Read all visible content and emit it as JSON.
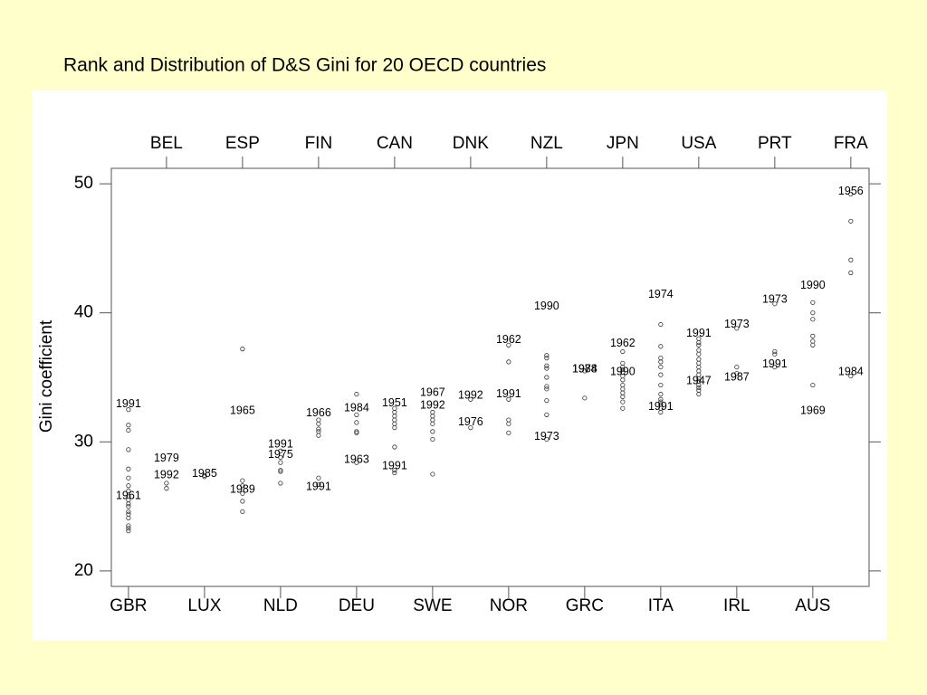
{
  "chart_data": {
    "type": "strip",
    "title": "Rank and Distribution of D&S Gini for 20 OECD countries",
    "y_label": "Gini coefficient",
    "ylim": [
      18.8,
      51.2
    ],
    "yticks": [
      20,
      30,
      40,
      50
    ],
    "point_color": "#333333",
    "series": [
      {
        "name": "GBR",
        "values": [
          32.5,
          31.3,
          30.9,
          29.4,
          27.9,
          27.2,
          26.6,
          26.2,
          25.8,
          25.5,
          25.2,
          25.0,
          24.6,
          24.4,
          24.1,
          23.5,
          23.3,
          23.1
        ],
        "year_labels": [
          {
            "label": "1991",
            "value": 32.9
          },
          {
            "label": "1961",
            "value": 25.8
          }
        ]
      },
      {
        "name": "BEL",
        "values": [
          26.8,
          26.4
        ],
        "year_labels": [
          {
            "label": "1979",
            "value": 28.7
          },
          {
            "label": "1992",
            "value": 27.4
          }
        ]
      },
      {
        "name": "LUX",
        "values": [
          27.4,
          27.3
        ],
        "year_labels": [
          {
            "label": "1985",
            "value": 27.5
          }
        ]
      },
      {
        "name": "ESP",
        "values": [
          37.2,
          27.0,
          26.6,
          26.0,
          25.4,
          24.6
        ],
        "year_labels": [
          {
            "label": "1965",
            "value": 32.4
          },
          {
            "label": "1989",
            "value": 26.3
          }
        ]
      },
      {
        "name": "NLD",
        "values": [
          29.3,
          28.8,
          28.4,
          27.8,
          27.7,
          26.8
        ],
        "year_labels": [
          {
            "label": "1991",
            "value": 29.8
          },
          {
            "label": "1975",
            "value": 29.0
          }
        ]
      },
      {
        "name": "FIN",
        "values": [
          31.7,
          31.4,
          31.0,
          30.8,
          30.5,
          27.2,
          26.7
        ],
        "year_labels": [
          {
            "label": "1966",
            "value": 32.2
          },
          {
            "label": "1991",
            "value": 26.5
          }
        ]
      },
      {
        "name": "DEU",
        "values": [
          33.7,
          32.1,
          31.5,
          30.8,
          30.7,
          28.4
        ],
        "year_labels": [
          {
            "label": "1984",
            "value": 32.6
          },
          {
            "label": "1963",
            "value": 28.6
          }
        ]
      },
      {
        "name": "CAN",
        "values": [
          32.6,
          32.3,
          32.0,
          31.7,
          31.4,
          31.1,
          29.6,
          27.8,
          27.6
        ],
        "year_labels": [
          {
            "label": "1951",
            "value": 33.0
          },
          {
            "label": "1991",
            "value": 28.1
          }
        ]
      },
      {
        "name": "SWE",
        "values": [
          32.3,
          32.0,
          31.7,
          31.4,
          30.8,
          30.2,
          27.5
        ],
        "year_labels": [
          {
            "label": "1967",
            "value": 33.8
          },
          {
            "label": "1992",
            "value": 32.8
          }
        ]
      },
      {
        "name": "DNK",
        "values": [
          33.3,
          31.1
        ],
        "year_labels": [
          {
            "label": "1992",
            "value": 33.6
          },
          {
            "label": "1976",
            "value": 31.5
          }
        ]
      },
      {
        "name": "NOR",
        "values": [
          37.5,
          36.2,
          33.3,
          31.7,
          31.4,
          30.7
        ],
        "year_labels": [
          {
            "label": "1962",
            "value": 37.9
          },
          {
            "label": "1991",
            "value": 33.7
          }
        ]
      },
      {
        "name": "NZL",
        "values": [
          36.7,
          36.5,
          35.9,
          35.7,
          35.0,
          34.3,
          34.1,
          33.2,
          32.1,
          30.2
        ],
        "year_labels": [
          {
            "label": "1990",
            "value": 40.5
          },
          {
            "label": "1973",
            "value": 30.4
          }
        ]
      },
      {
        "name": "GRC",
        "values": [
          35.5,
          33.4
        ],
        "year_labels": [
          {
            "label": "1974",
            "value": 35.6
          },
          {
            "label": "1988",
            "value": 35.6
          }
        ]
      },
      {
        "name": "JPN",
        "values": [
          37.0,
          36.1,
          35.8,
          35.6,
          35.4,
          35.1,
          34.8,
          34.4,
          34.1,
          33.8,
          33.5,
          33.1,
          32.6
        ],
        "year_labels": [
          {
            "label": "1962",
            "value": 37.6
          },
          {
            "label": "1990",
            "value": 35.4
          }
        ]
      },
      {
        "name": "ITA",
        "values": [
          39.1,
          37.4,
          36.5,
          36.2,
          35.8,
          35.2,
          34.4,
          33.7,
          33.3,
          33.1,
          32.9,
          32.6,
          32.3
        ],
        "year_labels": [
          {
            "label": "1974",
            "value": 41.4
          },
          {
            "label": "1991",
            "value": 32.7
          }
        ]
      },
      {
        "name": "USA",
        "values": [
          38.0,
          37.7,
          37.5,
          37.1,
          36.8,
          36.4,
          36.1,
          35.8,
          35.5,
          35.2,
          34.9,
          34.7,
          34.4,
          34.2,
          34.0,
          33.7
        ],
        "year_labels": [
          {
            "label": "1991",
            "value": 38.4
          },
          {
            "label": "1947",
            "value": 34.7
          }
        ]
      },
      {
        "name": "IRL",
        "values": [
          38.8,
          35.8,
          35.3
        ],
        "year_labels": [
          {
            "label": "1973",
            "value": 39.1
          },
          {
            "label": "1987",
            "value": 35.0
          }
        ]
      },
      {
        "name": "PRT",
        "values": [
          40.7,
          37.0,
          36.8,
          35.8
        ],
        "year_labels": [
          {
            "label": "1973",
            "value": 41.0
          },
          {
            "label": "1991",
            "value": 36.0
          }
        ]
      },
      {
        "name": "AUS",
        "values": [
          40.8,
          40.0,
          39.5,
          38.2,
          37.8,
          37.5,
          34.4
        ],
        "year_labels": [
          {
            "label": "1990",
            "value": 42.1
          },
          {
            "label": "1969",
            "value": 32.4
          }
        ]
      },
      {
        "name": "FRA",
        "values": [
          49.2,
          47.1,
          44.1,
          43.1,
          35.1
        ],
        "year_labels": [
          {
            "label": "1956",
            "value": 49.4
          },
          {
            "label": "1984",
            "value": 35.4
          }
        ]
      }
    ]
  }
}
